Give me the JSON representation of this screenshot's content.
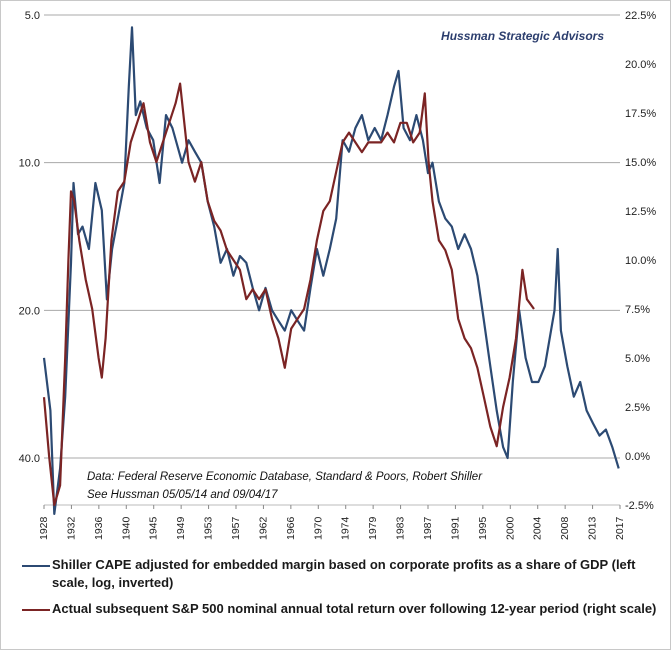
{
  "watermark": "Hussman Strategic Advisors",
  "note_line1": "Data: Federal Reserve Economic Database, Standard & Poors, Robert Shiller",
  "note_line2": "See Hussman 05/05/14 and 09/04/17",
  "colors": {
    "cape": "#2c4a73",
    "returns": "#7b2424"
  },
  "legend": [
    {
      "label": "Shiller CAPE adjusted for embedded margin based on corporate profits as a share of GDP (left scale, log, inverted)"
    },
    {
      "label": "Actual subsequent S&P 500 nominal annual total return over following 12-year period (right scale)"
    }
  ],
  "chart_data": {
    "type": "line",
    "x_ticks": [
      "1928",
      "1932",
      "1936",
      "1940",
      "1945",
      "1949",
      "1953",
      "1957",
      "1962",
      "1966",
      "1970",
      "1974",
      "1979",
      "1983",
      "1987",
      "1991",
      "1995",
      "2000",
      "2004",
      "2008",
      "2013",
      "2017"
    ],
    "y_left_ticks": [
      "5.0",
      "10.0",
      "20.0",
      "40.0"
    ],
    "y_left_values": [
      5,
      10,
      20,
      40
    ],
    "y_left_range": [
      5,
      55
    ],
    "y_left_scale": "log, inverted",
    "y_right_ticks": [
      "22.5%",
      "20.0%",
      "17.5%",
      "15.0%",
      "12.5%",
      "10.0%",
      "7.5%",
      "5.0%",
      "2.5%",
      "0.0%",
      "-2.5%"
    ],
    "y_right_range": [
      -2.5,
      22.5
    ],
    "x_range": [
      1928,
      2017.7
    ],
    "grid": "horizontal at left-axis ticks",
    "series": [
      {
        "axis": "left",
        "points": [
          [
            1928,
            25
          ],
          [
            1929,
            32
          ],
          [
            1929.6,
            52
          ],
          [
            1930.5,
            42
          ],
          [
            1931.3,
            30
          ],
          [
            1932.2,
            16
          ],
          [
            1932.6,
            11
          ],
          [
            1933.3,
            14
          ],
          [
            1934,
            13.5
          ],
          [
            1935,
            15
          ],
          [
            1936,
            11
          ],
          [
            1937,
            12.5
          ],
          [
            1937.8,
            19
          ],
          [
            1938.6,
            15
          ],
          [
            1939.5,
            13
          ],
          [
            1940.5,
            11
          ],
          [
            1941.2,
            7
          ],
          [
            1941.7,
            5.3
          ],
          [
            1942.3,
            8
          ],
          [
            1943,
            7.5
          ],
          [
            1944,
            8.5
          ],
          [
            1945,
            9
          ],
          [
            1946,
            11
          ],
          [
            1947,
            8
          ],
          [
            1948,
            8.5
          ],
          [
            1949.5,
            10
          ],
          [
            1950.5,
            9
          ],
          [
            1951.5,
            9.5
          ],
          [
            1952.5,
            10
          ],
          [
            1953.5,
            12
          ],
          [
            1954.5,
            13.5
          ],
          [
            1955.5,
            16
          ],
          [
            1956.5,
            15
          ],
          [
            1957.5,
            17
          ],
          [
            1958.5,
            15.5
          ],
          [
            1959.5,
            16
          ],
          [
            1960.5,
            18
          ],
          [
            1961.5,
            20
          ],
          [
            1962.5,
            18
          ],
          [
            1963.5,
            20
          ],
          [
            1964.5,
            21
          ],
          [
            1965.5,
            22
          ],
          [
            1966.5,
            20
          ],
          [
            1967.5,
            21
          ],
          [
            1968.5,
            22
          ],
          [
            1969.5,
            18
          ],
          [
            1970.5,
            15
          ],
          [
            1971.5,
            17
          ],
          [
            1972.5,
            15
          ],
          [
            1973.5,
            13
          ],
          [
            1974.5,
            9
          ],
          [
            1975.5,
            9.5
          ],
          [
            1976.5,
            8.5
          ],
          [
            1977.5,
            8
          ],
          [
            1978.5,
            9
          ],
          [
            1979.5,
            8.5
          ],
          [
            1980.5,
            9
          ],
          [
            1981.5,
            8
          ],
          [
            1982.5,
            7
          ],
          [
            1983.2,
            6.5
          ],
          [
            1984,
            8.5
          ],
          [
            1985,
            9
          ],
          [
            1986,
            8
          ],
          [
            1987,
            9
          ],
          [
            1987.8,
            10.5
          ],
          [
            1988.5,
            10
          ],
          [
            1989.5,
            12
          ],
          [
            1990.5,
            13
          ],
          [
            1991.5,
            13.5
          ],
          [
            1992.5,
            15
          ],
          [
            1993.5,
            14
          ],
          [
            1994.5,
            15
          ],
          [
            1995.5,
            17
          ],
          [
            1996.5,
            21
          ],
          [
            1997.5,
            26
          ],
          [
            1998.5,
            32
          ],
          [
            1999.5,
            38
          ],
          [
            2000.2,
            40
          ],
          [
            2001,
            28
          ],
          [
            2002,
            20
          ],
          [
            2003,
            25
          ],
          [
            2004,
            28
          ],
          [
            2005,
            28
          ],
          [
            2006,
            26
          ],
          [
            2007.5,
            20
          ],
          [
            2008,
            15
          ],
          [
            2008.5,
            22
          ],
          [
            2009.5,
            26
          ],
          [
            2010.5,
            30
          ],
          [
            2011.5,
            28
          ],
          [
            2012.5,
            32
          ],
          [
            2013.5,
            34
          ],
          [
            2014.5,
            36
          ],
          [
            2015.5,
            35
          ],
          [
            2016.5,
            38
          ],
          [
            2017.5,
            42
          ]
        ]
      },
      {
        "axis": "right",
        "points": [
          [
            1928,
            3
          ],
          [
            1928.8,
            0
          ],
          [
            1929.6,
            -2.5
          ],
          [
            1930.5,
            -1.5
          ],
          [
            1931.3,
            5
          ],
          [
            1931.8,
            10
          ],
          [
            1932.2,
            13.5
          ],
          [
            1932.7,
            13
          ],
          [
            1933.5,
            11
          ],
          [
            1934.5,
            9
          ],
          [
            1935.5,
            7.5
          ],
          [
            1936.5,
            5
          ],
          [
            1937,
            4
          ],
          [
            1937.6,
            6
          ],
          [
            1938.5,
            11
          ],
          [
            1939.5,
            13.5
          ],
          [
            1940.5,
            14
          ],
          [
            1941.5,
            16
          ],
          [
            1942.5,
            17
          ],
          [
            1943.5,
            18
          ],
          [
            1944.5,
            16
          ],
          [
            1945.5,
            15
          ],
          [
            1946.5,
            16
          ],
          [
            1947.5,
            17
          ],
          [
            1948.5,
            18
          ],
          [
            1949.2,
            19
          ],
          [
            1950.5,
            15
          ],
          [
            1951.5,
            14
          ],
          [
            1952.5,
            15
          ],
          [
            1953.5,
            13
          ],
          [
            1954.5,
            12
          ],
          [
            1955.5,
            11.5
          ],
          [
            1956.5,
            10.5
          ],
          [
            1957.5,
            10
          ],
          [
            1958.5,
            9.5
          ],
          [
            1959.5,
            8
          ],
          [
            1960.5,
            8.5
          ],
          [
            1961.5,
            8
          ],
          [
            1962.5,
            8.5
          ],
          [
            1963.5,
            7
          ],
          [
            1964.5,
            6
          ],
          [
            1965.5,
            4.5
          ],
          [
            1966.5,
            6.5
          ],
          [
            1967.5,
            7
          ],
          [
            1968.5,
            7.5
          ],
          [
            1969.5,
            9
          ],
          [
            1970.5,
            11
          ],
          [
            1971.5,
            12.5
          ],
          [
            1972.5,
            13
          ],
          [
            1973.5,
            14.5
          ],
          [
            1974.5,
            16
          ],
          [
            1975.5,
            16.5
          ],
          [
            1976.5,
            16
          ],
          [
            1977.5,
            15.5
          ],
          [
            1978.5,
            16
          ],
          [
            1979.5,
            16
          ],
          [
            1980.5,
            16
          ],
          [
            1981.5,
            16.5
          ],
          [
            1982.5,
            16
          ],
          [
            1983.5,
            17
          ],
          [
            1984.5,
            17
          ],
          [
            1985.5,
            16
          ],
          [
            1986.5,
            16.5
          ],
          [
            1987.3,
            18.5
          ],
          [
            1987.9,
            15
          ],
          [
            1988.5,
            13
          ],
          [
            1989.5,
            11
          ],
          [
            1990.5,
            10.5
          ],
          [
            1991.5,
            9.5
          ],
          [
            1992.5,
            7
          ],
          [
            1993.5,
            6
          ],
          [
            1994.5,
            5.5
          ],
          [
            1995.5,
            4.5
          ],
          [
            1996.5,
            3
          ],
          [
            1997.5,
            1.5
          ],
          [
            1998.5,
            0.5
          ],
          [
            1999.5,
            2.5
          ],
          [
            2000.5,
            4
          ],
          [
            2001.5,
            6
          ],
          [
            2002.5,
            9.5
          ],
          [
            2003.2,
            8
          ],
          [
            2004.3,
            7.5
          ]
        ]
      }
    ]
  }
}
